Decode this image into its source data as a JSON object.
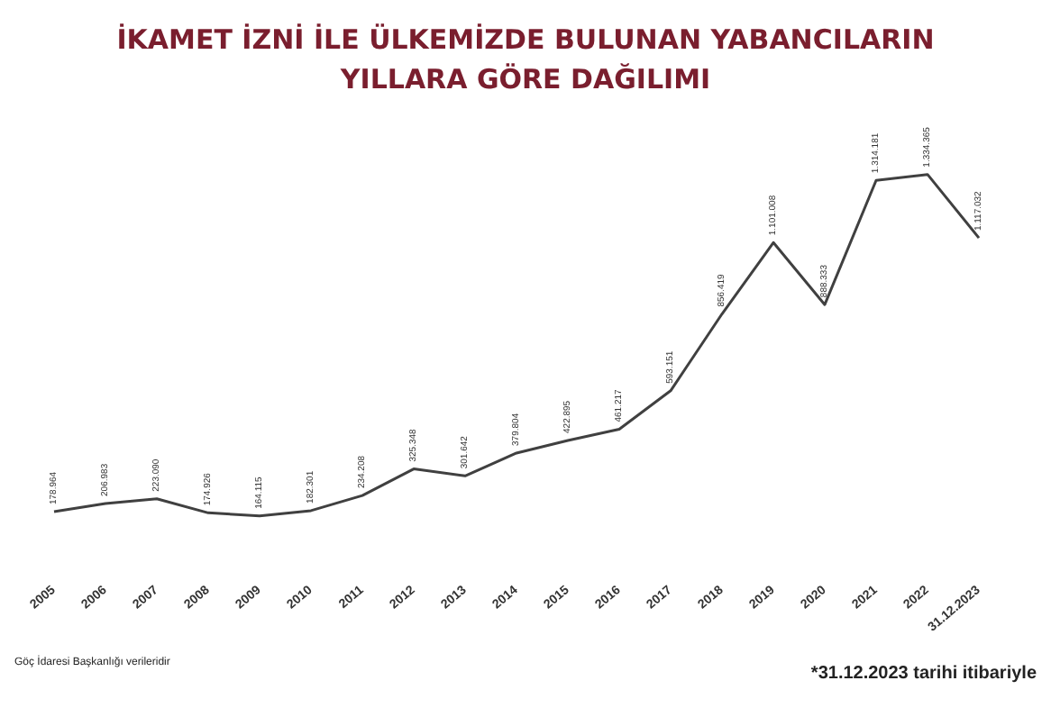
{
  "chart_data": {
    "type": "line",
    "title": "İKAMET İZNİ İLE ÜLKEMİZDE BULUNAN YABANCILARIN\nYILLARA GÖRE DAĞILIMI",
    "categories": [
      "2005",
      "2006",
      "2007",
      "2008",
      "2009",
      "2010",
      "2011",
      "2012",
      "2013",
      "2014",
      "2015",
      "2016",
      "2017",
      "2018",
      "2019",
      "2020",
      "2021",
      "2022",
      "31.12.2023"
    ],
    "series": [
      {
        "color": "#404040",
        "values": [
          178964,
          206983,
          223090,
          174926,
          164115,
          182301,
          234208,
          325348,
          301642,
          379804,
          422895,
          461217,
          593151,
          856419,
          1101008,
          888333,
          1314181,
          1334365,
          1117032
        ],
        "value_labels": [
          "178.964",
          "206.983",
          "223.090",
          "174.926",
          "164.115",
          "182.301",
          "234.208",
          "325.348",
          "301.642",
          "379.804",
          "422.895",
          "461.217",
          "593.151",
          "856.419",
          "1.101.008",
          "888.333",
          "1.314.181",
          "1.334.365",
          "1.117.032"
        ]
      }
    ],
    "marker": "none",
    "grid": false,
    "tick_labels": "x",
    "annotations": [
      "Göç İdaresi Başkanlığı verileridir",
      "*31.12.2023 tarihi itibariyle"
    ]
  }
}
